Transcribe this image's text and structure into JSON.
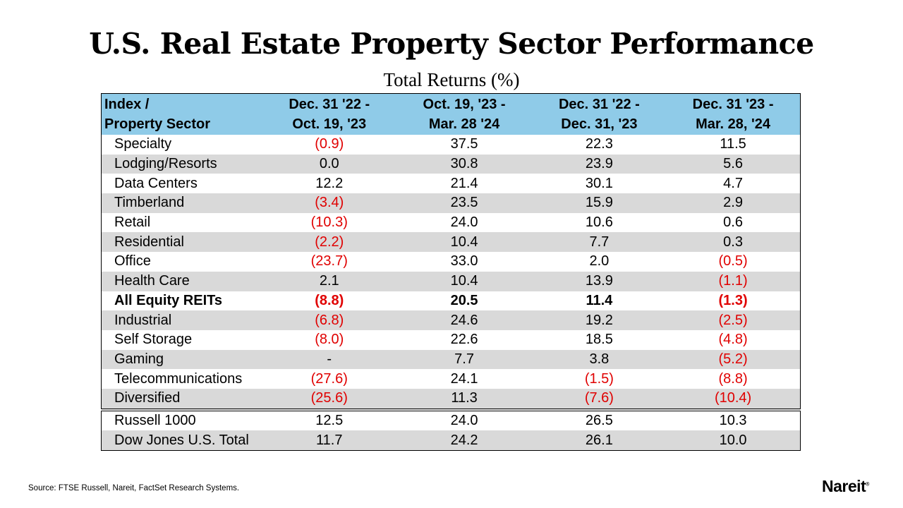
{
  "title": "U.S. Real Estate Property Sector Performance",
  "subtitle": "Total Returns (%)",
  "table": {
    "headers": [
      [
        "Index /",
        "Property Sector"
      ],
      [
        "Dec. 31 '22 -",
        "Oct. 19, '23"
      ],
      [
        "Oct. 19, '23 -",
        "Mar. 28 '24"
      ],
      [
        "Dec. 31 '22 -",
        "Dec. 31, '23"
      ],
      [
        "Dec. 31 '23 -",
        "Mar. 28, '24"
      ]
    ],
    "rows": [
      {
        "label": "Specialty",
        "values": [
          "(0.9)",
          "37.5",
          "22.3",
          "11.5"
        ]
      },
      {
        "label": "Lodging/Resorts",
        "values": [
          "0.0",
          "30.8",
          "23.9",
          "5.6"
        ]
      },
      {
        "label": "Data Centers",
        "values": [
          "12.2",
          "21.4",
          "30.1",
          "4.7"
        ]
      },
      {
        "label": "Timberland",
        "values": [
          "(3.4)",
          "23.5",
          "15.9",
          "2.9"
        ]
      },
      {
        "label": "Retail",
        "values": [
          "(10.3)",
          "24.0",
          "10.6",
          "0.6"
        ]
      },
      {
        "label": "Residential",
        "values": [
          "(2.2)",
          "10.4",
          "7.7",
          "0.3"
        ]
      },
      {
        "label": "Office",
        "values": [
          "(23.7)",
          "33.0",
          "2.0",
          "(0.5)"
        ]
      },
      {
        "label": "Health Care",
        "values": [
          "2.1",
          "10.4",
          "13.9",
          "(1.1)"
        ]
      },
      {
        "label": "All Equity REITs",
        "values": [
          "(8.8)",
          "20.5",
          "11.4",
          "(1.3)"
        ],
        "bold": true
      },
      {
        "label": "Industrial",
        "values": [
          "(6.8)",
          "24.6",
          "19.2",
          "(2.5)"
        ]
      },
      {
        "label": "Self Storage",
        "values": [
          "(8.0)",
          "22.6",
          "18.5",
          "(4.8)"
        ]
      },
      {
        "label": "Gaming",
        "values": [
          "-",
          "7.7",
          "3.8",
          "(5.2)"
        ]
      },
      {
        "label": "Telecommunications",
        "values": [
          "(27.6)",
          "24.1",
          "(1.5)",
          "(8.8)"
        ]
      },
      {
        "label": "Diversified",
        "values": [
          "(25.6)",
          "11.3",
          "(7.6)",
          "(10.4)"
        ]
      },
      {
        "label": "Russell 1000",
        "values": [
          "12.5",
          "24.0",
          "26.5",
          "10.3"
        ],
        "separator": true
      },
      {
        "label": "Dow Jones U.S. Total",
        "values": [
          "11.7",
          "24.2",
          "26.1",
          "10.0"
        ]
      }
    ]
  },
  "colors": {
    "header": "#8fcbe8",
    "stripe": "#d9d9d9",
    "negative": "#e00000"
  },
  "source": "Source: FTSE Russell, Nareit, FactSet Research Systems.",
  "logo": "Nareit"
}
